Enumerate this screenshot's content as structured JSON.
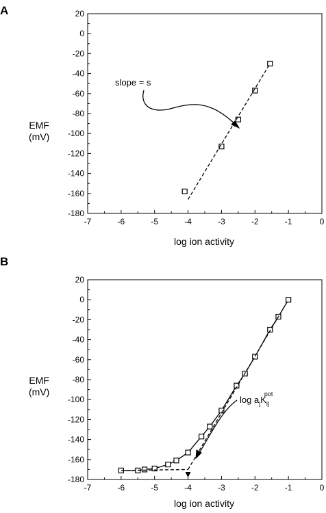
{
  "chart_data": [
    {
      "panel": "A",
      "type": "scatter",
      "xlabel": "log ion activity",
      "ylabel": [
        "EMF",
        "(mV)"
      ],
      "xlim": [
        -7,
        0
      ],
      "ylim": [
        -180,
        20
      ],
      "xticks": [
        -7,
        -6,
        -5,
        -4,
        -3,
        -2,
        -1,
        0
      ],
      "yticks": [
        20,
        0,
        -20,
        -40,
        -60,
        -80,
        -100,
        -120,
        -140,
        -160,
        -180
      ],
      "series": [
        {
          "style": "markers",
          "points": [
            [
              -4.1,
              -158
            ],
            [
              -3.0,
              -113
            ],
            [
              -2.5,
              -86
            ],
            [
              -2.0,
              -57
            ],
            [
              -1.55,
              -30
            ]
          ]
        },
        {
          "style": "dashed-line",
          "points": [
            [
              -4.0,
              -166
            ],
            [
              -1.55,
              -30
            ]
          ]
        }
      ],
      "annotations": [
        {
          "text": "slope = s"
        }
      ]
    },
    {
      "panel": "B",
      "type": "scatter",
      "xlabel": "log ion activity",
      "ylabel": [
        "EMF",
        "(mV)"
      ],
      "xlim": [
        -7,
        0
      ],
      "ylim": [
        -180,
        20
      ],
      "xticks": [
        -7,
        -6,
        -5,
        -4,
        -3,
        -2,
        -1,
        0
      ],
      "yticks": [
        20,
        0,
        -20,
        -40,
        -60,
        -80,
        -100,
        -120,
        -140,
        -160,
        -180
      ],
      "series": [
        {
          "style": "markers+solid-line",
          "points": [
            [
              -6.0,
              -171
            ],
            [
              -5.5,
              -171
            ],
            [
              -5.3,
              -170
            ],
            [
              -5.0,
              -169
            ],
            [
              -4.6,
              -165
            ],
            [
              -4.35,
              -161
            ],
            [
              -4.0,
              -153
            ],
            [
              -3.6,
              -137
            ],
            [
              -3.35,
              -127
            ],
            [
              -3.0,
              -111
            ],
            [
              -2.55,
              -86
            ],
            [
              -2.3,
              -74
            ],
            [
              -2.0,
              -57
            ],
            [
              -1.55,
              -30
            ],
            [
              -1.3,
              -17
            ],
            [
              -1.0,
              0
            ]
          ]
        },
        {
          "style": "dashed-line",
          "points": [
            [
              -6.0,
              -171
            ],
            [
              -4.0,
              -170
            ]
          ]
        },
        {
          "style": "dashed-line",
          "points": [
            [
              -4.0,
              -170
            ],
            [
              -1.0,
              0
            ]
          ]
        }
      ],
      "annotations": [
        {
          "text": "log a",
          "sub1": "j",
          "main2": "K",
          "sub2": "ij",
          "sup": "pot"
        }
      ]
    }
  ]
}
